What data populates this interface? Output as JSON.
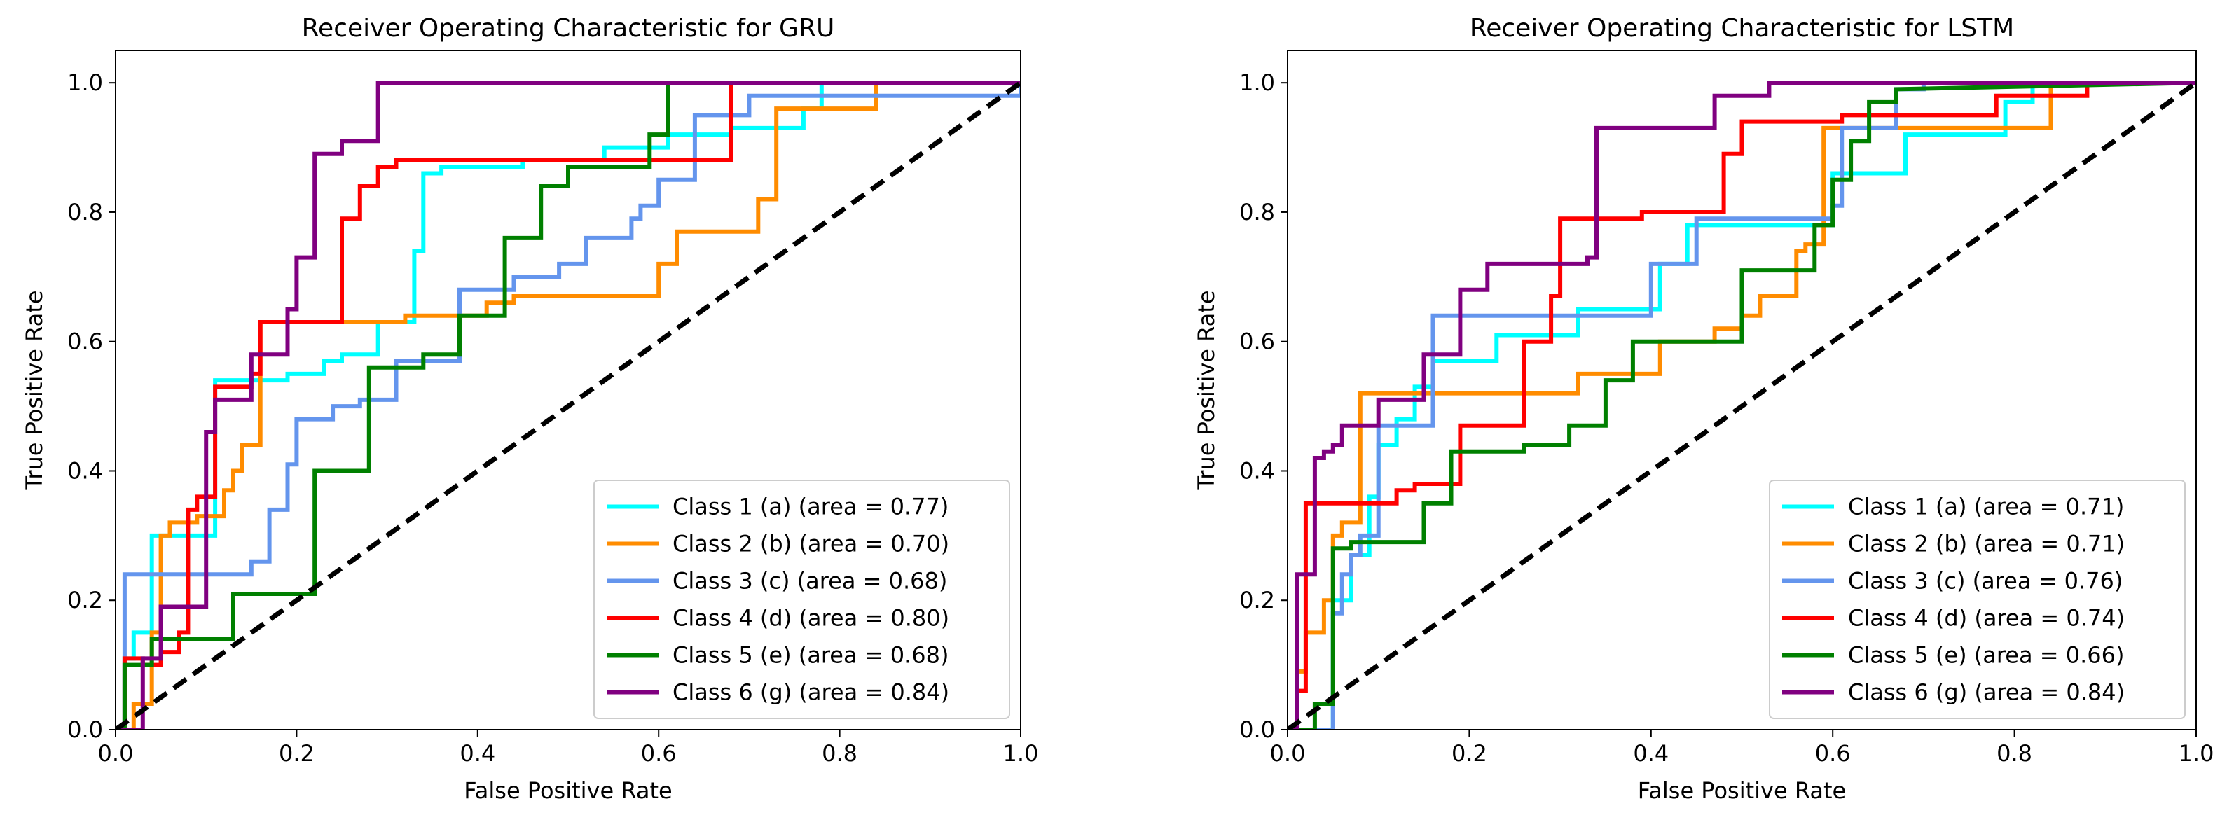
{
  "chart_data": [
    {
      "type": "line",
      "title": "Receiver Operating Characteristic for GRU",
      "xlabel": "False Positive Rate",
      "ylabel": "True Positive Rate",
      "xlim": [
        0.0,
        1.0
      ],
      "ylim": [
        0.0,
        1.05
      ],
      "xticks": [
        "0.0",
        "0.2",
        "0.4",
        "0.6",
        "0.8",
        "1.0"
      ],
      "yticks": [
        "0.0",
        "0.2",
        "0.4",
        "0.6",
        "0.8",
        "1.0"
      ],
      "grid": false,
      "legend_position": "lower right",
      "diagonal": {
        "name": "chance",
        "x": [
          0,
          1
        ],
        "y": [
          0,
          1
        ],
        "color": "#000000",
        "style": "dashed"
      },
      "series": [
        {
          "name": "Class 1 (a) (area = 0.77)",
          "color": "#00ffff",
          "x": [
            0,
            0.01,
            0.01,
            0.02,
            0.02,
            0.04,
            0.04,
            0.07,
            0.07,
            0.11,
            0.11,
            0.19,
            0.19,
            0.23,
            0.23,
            0.25,
            0.25,
            0.29,
            0.29,
            0.33,
            0.33,
            0.34,
            0.34,
            0.36,
            0.36,
            0.45,
            0.45,
            0.54,
            0.54,
            0.61,
            0.61,
            0.68,
            0.68,
            0.76,
            0.76,
            0.78,
            0.78,
            1.0
          ],
          "y": [
            0,
            0,
            0.11,
            0.11,
            0.15,
            0.15,
            0.3,
            0.3,
            0.3,
            0.3,
            0.54,
            0.54,
            0.55,
            0.55,
            0.57,
            0.57,
            0.58,
            0.58,
            0.63,
            0.63,
            0.74,
            0.74,
            0.86,
            0.86,
            0.87,
            0.87,
            0.88,
            0.88,
            0.9,
            0.9,
            0.92,
            0.92,
            0.93,
            0.93,
            0.96,
            0.96,
            1.0,
            1.0
          ]
        },
        {
          "name": "Class 2 (b) (area = 0.70)",
          "color": "#ff8c00",
          "x": [
            0,
            0.02,
            0.02,
            0.04,
            0.04,
            0.05,
            0.05,
            0.06,
            0.06,
            0.09,
            0.09,
            0.12,
            0.12,
            0.13,
            0.13,
            0.14,
            0.14,
            0.16,
            0.16,
            0.32,
            0.32,
            0.41,
            0.41,
            0.44,
            0.44,
            0.6,
            0.6,
            0.62,
            0.62,
            0.71,
            0.71,
            0.73,
            0.73,
            0.75,
            0.75,
            0.84,
            0.84,
            1.0
          ],
          "y": [
            0,
            0,
            0.04,
            0.04,
            0.15,
            0.15,
            0.3,
            0.3,
            0.32,
            0.32,
            0.33,
            0.33,
            0.37,
            0.37,
            0.4,
            0.4,
            0.44,
            0.44,
            0.63,
            0.63,
            0.64,
            0.64,
            0.66,
            0.66,
            0.67,
            0.67,
            0.72,
            0.72,
            0.77,
            0.77,
            0.82,
            0.82,
            0.96,
            0.96,
            0.96,
            0.96,
            1.0,
            1.0
          ]
        },
        {
          "name": "Class 3 (c) (area = 0.68)",
          "color": "#6495ed",
          "x": [
            0,
            0.01,
            0.01,
            0.15,
            0.15,
            0.17,
            0.17,
            0.19,
            0.19,
            0.2,
            0.2,
            0.24,
            0.24,
            0.27,
            0.27,
            0.31,
            0.31,
            0.38,
            0.38,
            0.44,
            0.44,
            0.49,
            0.49,
            0.52,
            0.52,
            0.57,
            0.57,
            0.58,
            0.58,
            0.6,
            0.6,
            0.64,
            0.64,
            0.7,
            0.7,
            1.0,
            1.0
          ],
          "y": [
            0,
            0,
            0.24,
            0.24,
            0.26,
            0.26,
            0.34,
            0.34,
            0.41,
            0.41,
            0.48,
            0.48,
            0.5,
            0.5,
            0.51,
            0.51,
            0.57,
            0.57,
            0.68,
            0.68,
            0.7,
            0.7,
            0.72,
            0.72,
            0.76,
            0.76,
            0.79,
            0.79,
            0.81,
            0.81,
            0.85,
            0.85,
            0.95,
            0.95,
            0.98,
            0.98,
            1.0
          ]
        },
        {
          "name": "Class 4 (d) (area = 0.80)",
          "color": "#ff0000",
          "x": [
            0,
            0.01,
            0.01,
            0.03,
            0.03,
            0.05,
            0.05,
            0.07,
            0.07,
            0.08,
            0.08,
            0.09,
            0.09,
            0.11,
            0.11,
            0.15,
            0.15,
            0.16,
            0.16,
            0.25,
            0.25,
            0.27,
            0.27,
            0.29,
            0.29,
            0.31,
            0.31,
            0.42,
            0.42,
            0.68,
            0.68,
            1.0
          ],
          "y": [
            0,
            0,
            0.11,
            0.11,
            0.1,
            0.1,
            0.12,
            0.12,
            0.15,
            0.15,
            0.34,
            0.34,
            0.36,
            0.36,
            0.53,
            0.53,
            0.55,
            0.55,
            0.63,
            0.63,
            0.79,
            0.79,
            0.84,
            0.84,
            0.87,
            0.87,
            0.88,
            0.88,
            0.88,
            0.88,
            1.0,
            1.0
          ]
        },
        {
          "name": "Class 5 (e) (area = 0.68)",
          "color": "#008000",
          "x": [
            0,
            0.01,
            0.01,
            0.04,
            0.04,
            0.13,
            0.13,
            0.22,
            0.22,
            0.28,
            0.28,
            0.34,
            0.34,
            0.38,
            0.38,
            0.43,
            0.43,
            0.47,
            0.47,
            0.5,
            0.5,
            0.59,
            0.59,
            0.61,
            0.61,
            1.0
          ],
          "y": [
            0,
            0,
            0.1,
            0.1,
            0.14,
            0.14,
            0.21,
            0.21,
            0.4,
            0.4,
            0.56,
            0.56,
            0.58,
            0.58,
            0.64,
            0.64,
            0.76,
            0.76,
            0.84,
            0.84,
            0.87,
            0.87,
            0.92,
            0.92,
            1.0,
            1.0
          ]
        },
        {
          "name": "Class 6 (g) (area = 0.84)",
          "color": "#800080",
          "x": [
            0,
            0.03,
            0.03,
            0.05,
            0.05,
            0.1,
            0.1,
            0.11,
            0.11,
            0.15,
            0.15,
            0.19,
            0.19,
            0.2,
            0.2,
            0.22,
            0.22,
            0.25,
            0.25,
            0.29,
            0.29,
            0.33,
            0.33,
            1.0
          ],
          "y": [
            0,
            0,
            0.11,
            0.11,
            0.19,
            0.19,
            0.46,
            0.46,
            0.51,
            0.51,
            0.58,
            0.58,
            0.65,
            0.65,
            0.73,
            0.73,
            0.89,
            0.89,
            0.91,
            0.91,
            1.0,
            1.0,
            1.0,
            1.0
          ]
        }
      ]
    },
    {
      "type": "line",
      "title": "Receiver Operating Characteristic for LSTM",
      "xlabel": "False Positive Rate",
      "ylabel": "True Positive Rate",
      "xlim": [
        0.0,
        1.0
      ],
      "ylim": [
        0.0,
        1.05
      ],
      "xticks": [
        "0.0",
        "0.2",
        "0.4",
        "0.6",
        "0.8",
        "1.0"
      ],
      "yticks": [
        "0.0",
        "0.2",
        "0.4",
        "0.6",
        "0.8",
        "1.0"
      ],
      "grid": false,
      "legend_position": "lower right",
      "diagonal": {
        "name": "chance",
        "x": [
          0,
          1
        ],
        "y": [
          0,
          1
        ],
        "color": "#000000",
        "style": "dashed"
      },
      "series": [
        {
          "name": "Class 1 (a) (area = 0.71)",
          "color": "#00ffff",
          "x": [
            0,
            0.05,
            0.05,
            0.07,
            0.07,
            0.09,
            0.09,
            0.1,
            0.1,
            0.12,
            0.12,
            0.14,
            0.14,
            0.16,
            0.16,
            0.23,
            0.23,
            0.27,
            0.27,
            0.32,
            0.32,
            0.41,
            0.41,
            0.44,
            0.44,
            0.49,
            0.49,
            0.6,
            0.6,
            0.68,
            0.68,
            0.79,
            0.79,
            0.82,
            0.82,
            1.0
          ],
          "y": [
            0,
            0,
            0.2,
            0.2,
            0.27,
            0.27,
            0.36,
            0.36,
            0.44,
            0.44,
            0.48,
            0.48,
            0.53,
            0.53,
            0.57,
            0.57,
            0.61,
            0.61,
            0.61,
            0.61,
            0.65,
            0.65,
            0.72,
            0.72,
            0.78,
            0.78,
            0.78,
            0.78,
            0.86,
            0.86,
            0.92,
            0.92,
            0.97,
            0.97,
            1.0,
            1.0
          ]
        },
        {
          "name": "Class 2 (b) (area = 0.71)",
          "color": "#ff8c00",
          "x": [
            0,
            0.01,
            0.01,
            0.02,
            0.02,
            0.04,
            0.04,
            0.05,
            0.05,
            0.06,
            0.06,
            0.08,
            0.08,
            0.32,
            0.32,
            0.41,
            0.41,
            0.47,
            0.47,
            0.5,
            0.5,
            0.52,
            0.52,
            0.56,
            0.56,
            0.57,
            0.57,
            0.59,
            0.59,
            0.84,
            0.84,
            1.0
          ],
          "y": [
            0,
            0,
            0.09,
            0.09,
            0.15,
            0.15,
            0.2,
            0.2,
            0.3,
            0.3,
            0.32,
            0.32,
            0.52,
            0.52,
            0.55,
            0.55,
            0.6,
            0.6,
            0.62,
            0.62,
            0.64,
            0.64,
            0.67,
            0.67,
            0.74,
            0.74,
            0.75,
            0.75,
            0.93,
            0.93,
            1.0,
            1.0
          ]
        },
        {
          "name": "Class 3 (c) (area = 0.76)",
          "color": "#6495ed",
          "x": [
            0,
            0.05,
            0.05,
            0.06,
            0.06,
            0.07,
            0.07,
            0.08,
            0.08,
            0.1,
            0.1,
            0.16,
            0.16,
            0.4,
            0.4,
            0.45,
            0.45,
            0.51,
            0.51,
            0.6,
            0.6,
            0.61,
            0.61,
            0.67,
            0.67,
            0.7,
            0.7,
            1.0
          ],
          "y": [
            0,
            0,
            0.18,
            0.18,
            0.24,
            0.24,
            0.27,
            0.27,
            0.3,
            0.3,
            0.47,
            0.47,
            0.64,
            0.64,
            0.72,
            0.72,
            0.79,
            0.79,
            0.79,
            0.79,
            0.81,
            0.81,
            0.93,
            0.93,
            0.99,
            0.99,
            1.0,
            1.0
          ]
        },
        {
          "name": "Class 4 (d) (area = 0.74)",
          "color": "#ff0000",
          "x": [
            0,
            0.01,
            0.01,
            0.02,
            0.02,
            0.12,
            0.12,
            0.14,
            0.14,
            0.19,
            0.19,
            0.26,
            0.26,
            0.29,
            0.29,
            0.3,
            0.3,
            0.39,
            0.39,
            0.48,
            0.48,
            0.49,
            0.49,
            0.5,
            0.5,
            0.61,
            0.61,
            0.78,
            0.78,
            0.88,
            0.88,
            1.0
          ],
          "y": [
            0,
            0,
            0.06,
            0.06,
            0.35,
            0.35,
            0.37,
            0.37,
            0.38,
            0.38,
            0.47,
            0.47,
            0.6,
            0.6,
            0.67,
            0.67,
            0.79,
            0.79,
            0.8,
            0.8,
            0.89,
            0.89,
            0.89,
            0.89,
            0.94,
            0.94,
            0.95,
            0.95,
            0.98,
            0.98,
            1.0,
            1.0
          ]
        },
        {
          "name": "Class 5 (e) (area = 0.66)",
          "color": "#008000",
          "x": [
            0,
            0.03,
            0.03,
            0.05,
            0.05,
            0.07,
            0.07,
            0.15,
            0.15,
            0.18,
            0.18,
            0.26,
            0.26,
            0.31,
            0.31,
            0.35,
            0.35,
            0.38,
            0.38,
            0.5,
            0.5,
            0.58,
            0.58,
            0.6,
            0.6,
            0.62,
            0.62,
            0.64,
            0.64,
            0.67,
            0.67,
            1.0
          ],
          "y": [
            0,
            0,
            0.04,
            0.04,
            0.28,
            0.28,
            0.29,
            0.29,
            0.35,
            0.35,
            0.43,
            0.43,
            0.44,
            0.44,
            0.47,
            0.47,
            0.54,
            0.54,
            0.6,
            0.6,
            0.71,
            0.71,
            0.78,
            0.78,
            0.85,
            0.85,
            0.91,
            0.91,
            0.97,
            0.97,
            0.99,
            1.0
          ]
        },
        {
          "name": "Class 6 (g) (area = 0.84)",
          "color": "#800080",
          "x": [
            0,
            0.01,
            0.01,
            0.03,
            0.03,
            0.04,
            0.04,
            0.05,
            0.05,
            0.06,
            0.06,
            0.1,
            0.1,
            0.15,
            0.15,
            0.19,
            0.19,
            0.22,
            0.22,
            0.28,
            0.28,
            0.33,
            0.33,
            0.34,
            0.34,
            0.47,
            0.47,
            0.53,
            0.53,
            0.65,
            0.65,
            1.0
          ],
          "y": [
            0,
            0,
            0.24,
            0.24,
            0.42,
            0.42,
            0.43,
            0.43,
            0.44,
            0.44,
            0.47,
            0.47,
            0.51,
            0.51,
            0.58,
            0.58,
            0.68,
            0.68,
            0.72,
            0.72,
            0.72,
            0.72,
            0.73,
            0.73,
            0.93,
            0.93,
            0.98,
            0.98,
            1.0,
            1.0,
            1.0,
            1.0
          ]
        }
      ]
    }
  ]
}
